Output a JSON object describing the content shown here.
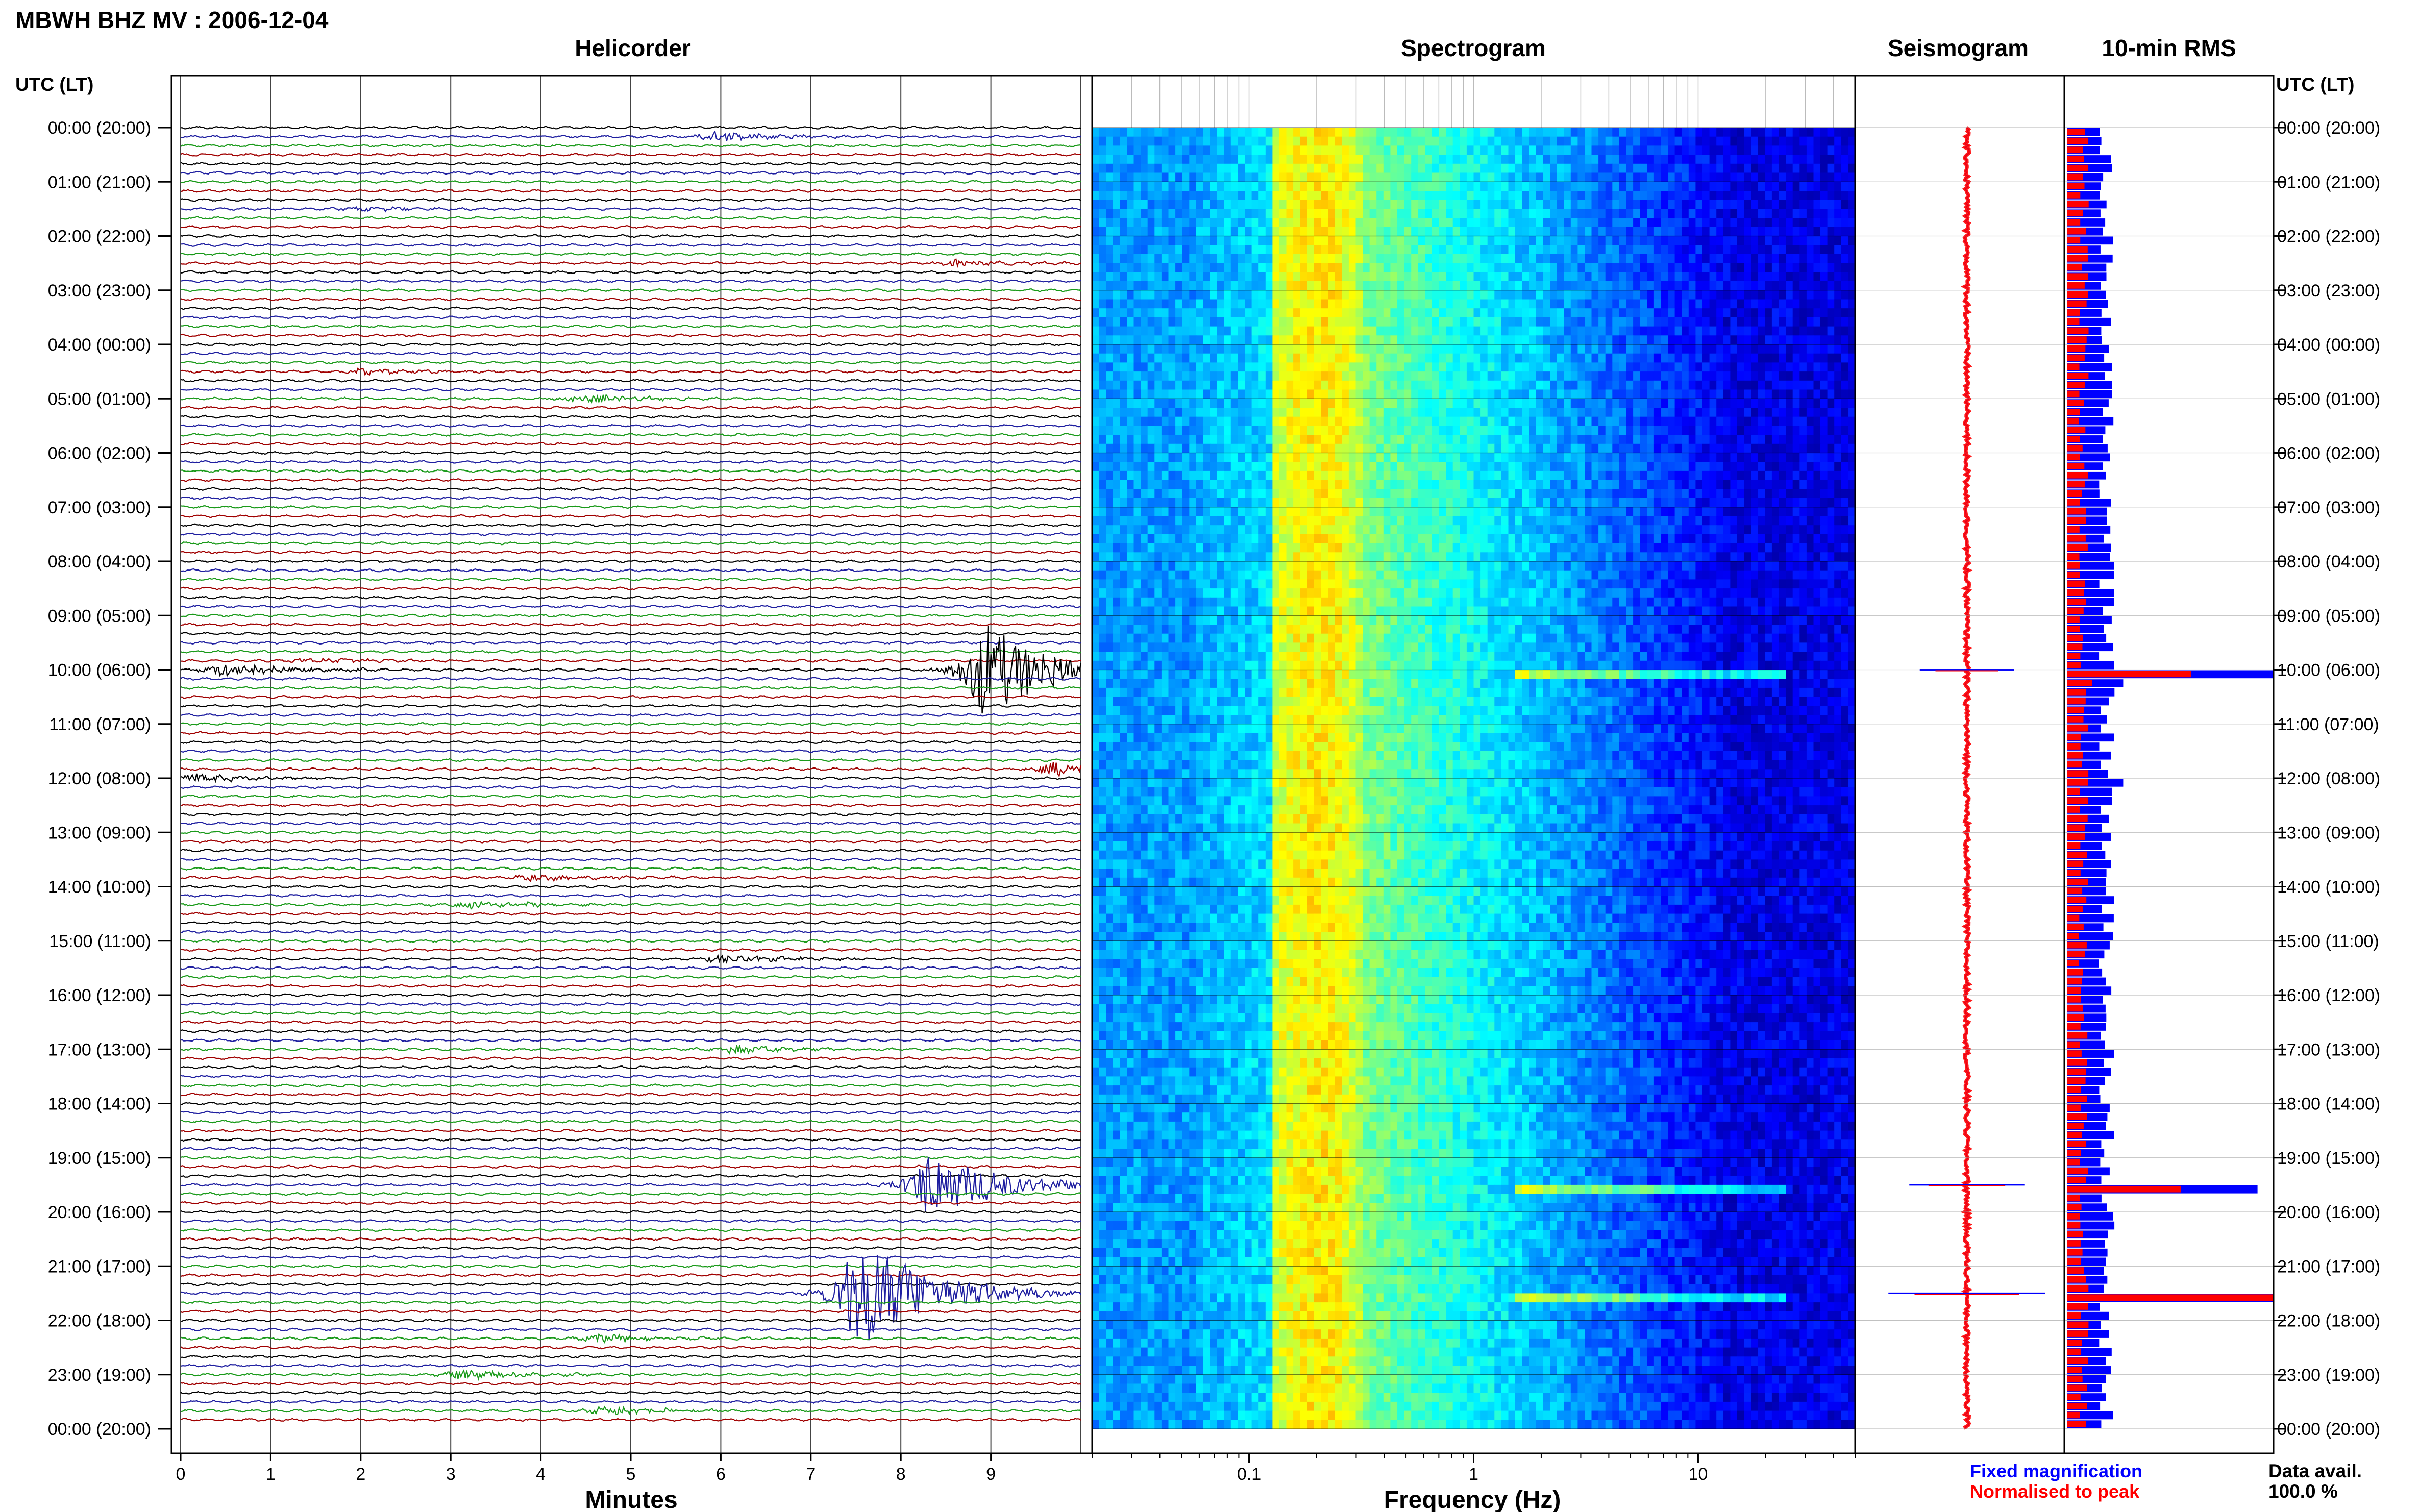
{
  "title": "MBWH BHZ MV : 2006-12-04",
  "panels": {
    "helicorder": "Helicorder",
    "spectrogram": "Spectrogram",
    "seismogram": "Seismogram",
    "rms": "10-min RMS"
  },
  "axis_header": "UTC (LT)",
  "x_axes": {
    "helicorder_label": "Minutes",
    "spectrogram_label": "Frequency (Hz)"
  },
  "legend": {
    "fixed": "Fixed magnification",
    "normalised": "Normalised to peak",
    "fixed_color": "#0000ff",
    "normalised_color": "#ff0000"
  },
  "data_availability": {
    "label": "Data avail.",
    "value": "100.0 %"
  },
  "colors": {
    "trace_cycle": [
      "#000000",
      "#1f1fa0",
      "#1a9a1a",
      "#a00000"
    ],
    "spectrogram_colormap": "jet"
  },
  "chart_data": [
    {
      "type": "line",
      "name": "helicorder",
      "title": "Helicorder",
      "xlabel": "Minutes",
      "x_ticks": [
        "0",
        "1",
        "2",
        "3",
        "4",
        "5",
        "6",
        "7",
        "8",
        "9"
      ],
      "xlim": [
        0,
        10
      ],
      "y_ticks": [
        "00:00 (20:00)",
        "01:00 (21:00)",
        "02:00 (22:00)",
        "03:00 (23:00)",
        "04:00 (00:00)",
        "05:00 (01:00)",
        "06:00 (02:00)",
        "07:00 (03:00)",
        "08:00 (04:00)",
        "09:00 (05:00)",
        "10:00 (06:00)",
        "11:00 (07:00)",
        "12:00 (08:00)",
        "13:00 (09:00)",
        "14:00 (10:00)",
        "15:00 (11:00)",
        "16:00 (12:00)",
        "17:00 (13:00)",
        "18:00 (14:00)",
        "19:00 (15:00)",
        "20:00 (16:00)",
        "21:00 (17:00)",
        "22:00 (18:00)",
        "23:00 (19:00)",
        "00:00 (20:00)"
      ],
      "rows": 144,
      "events": [
        {
          "hour": 0.17,
          "minute": 5.9,
          "amp": 0.35
        },
        {
          "hour": 1.5,
          "minute": 2.0,
          "amp": 0.15
        },
        {
          "hour": 2.5,
          "minute": 8.6,
          "amp": 0.25
        },
        {
          "hour": 4.5,
          "minute": 2.0,
          "amp": 0.2
        },
        {
          "hour": 5.0,
          "minute": 4.4,
          "amp": 0.3
        },
        {
          "hour": 9.83,
          "minute": 1.4,
          "amp": 0.2
        },
        {
          "hour": 10.0,
          "minute": 0.5,
          "amp": 0.5
        },
        {
          "hour": 10.0,
          "minute": 8.9,
          "amp": 3.5
        },
        {
          "hour": 11.83,
          "minute": 9.7,
          "amp": 0.5
        },
        {
          "hour": 12.0,
          "minute": 0.1,
          "amp": 0.3
        },
        {
          "hour": 13.83,
          "minute": 3.9,
          "amp": 0.25
        },
        {
          "hour": 14.33,
          "minute": 3.2,
          "amp": 0.3
        },
        {
          "hour": 15.33,
          "minute": 6.0,
          "amp": 0.3
        },
        {
          "hour": 17.0,
          "minute": 6.1,
          "amp": 0.3
        },
        {
          "hour": 19.5,
          "minute": 8.3,
          "amp": 2.5
        },
        {
          "hour": 22.33,
          "minute": 4.6,
          "amp": 0.3
        },
        {
          "hour": 23.0,
          "minute": 3.1,
          "amp": 0.35
        },
        {
          "hour": 23.67,
          "minute": 4.7,
          "amp": 0.35
        },
        {
          "hour": 21.5,
          "minute": 7.5,
          "amp": 4.5
        }
      ]
    },
    {
      "type": "heatmap",
      "name": "spectrogram",
      "title": "Spectrogram",
      "xlabel": "Frequency (Hz)",
      "x_scale": "log",
      "xlim": [
        0.02,
        50
      ],
      "x_ticks": [
        0.1,
        1,
        10
      ],
      "x_tick_labels": [
        "0.1",
        "1",
        "10"
      ],
      "colormap": "jet",
      "peak_band_hz": [
        0.14,
        0.3
      ],
      "gap_hour": 11.8,
      "event_hours": [
        10.0,
        19.5,
        21.5
      ]
    },
    {
      "type": "line",
      "name": "seismogram",
      "title": "Seismogram",
      "series": [
        {
          "label": "Fixed magnification",
          "color": "#0000ff"
        },
        {
          "label": "Normalised to peak",
          "color": "#ff0000"
        }
      ],
      "spikes": [
        {
          "hour": 10.0,
          "amp": 0.45
        },
        {
          "hour": 19.5,
          "amp": 0.55
        },
        {
          "hour": 21.5,
          "amp": 0.75
        }
      ]
    },
    {
      "type": "bar",
      "name": "rms",
      "title": "10-min RMS",
      "orientation": "horizontal",
      "bins_per_hour": 6,
      "hours": 24,
      "baseline_fixed": 0.19,
      "baseline_normalised": 0.08,
      "peaks": [
        {
          "bin": 60,
          "fixed": 1.0,
          "normalised": 0.6
        },
        {
          "bin": 61,
          "fixed": 0.27,
          "normalised": 0.12
        },
        {
          "bin": 117,
          "fixed": 0.92,
          "normalised": 0.55
        },
        {
          "bin": 129,
          "fixed": 1.0,
          "normalised": 1.0
        },
        {
          "bin": 3,
          "fixed": 0.21,
          "normalised": 0.08
        },
        {
          "bin": 72,
          "fixed": 0.27,
          "normalised": 0.1
        },
        {
          "bin": 104,
          "fixed": 0.21,
          "normalised": 0.09
        }
      ]
    }
  ]
}
